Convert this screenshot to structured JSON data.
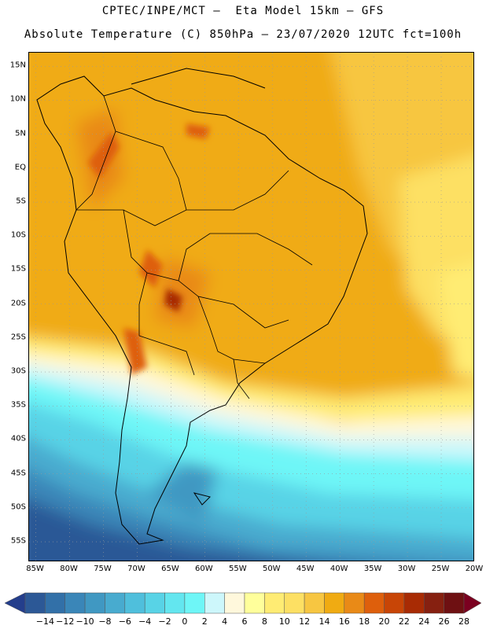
{
  "header": {
    "line1": "CPTEC/INPE/MCT –  Eta Model 15km – GFS",
    "line2": "Absolute Temperature (C) 850hPa – 23/07/2020 12UTC fct=100h"
  },
  "map": {
    "lat_labels": [
      "15N",
      "10N",
      "5N",
      "EQ",
      "5S",
      "10S",
      "15S",
      "20S",
      "25S",
      "30S",
      "35S",
      "40S",
      "45S",
      "50S",
      "55S"
    ],
    "lon_labels": [
      "85W",
      "80W",
      "75W",
      "70W",
      "65W",
      "60W",
      "55W",
      "50W",
      "45W",
      "40W",
      "35W",
      "30W",
      "25W",
      "20W"
    ],
    "lat_range": [
      17,
      -58
    ],
    "lon_range": [
      -86,
      -20
    ],
    "grid": "dotted"
  },
  "colorbar": {
    "labels": [
      "-14",
      "-12",
      "-10",
      "-8",
      "-6",
      "-4",
      "-2",
      "0",
      "2",
      "4",
      "6",
      "8",
      "10",
      "12",
      "14",
      "16",
      "18",
      "20",
      "22",
      "24",
      "26",
      "28"
    ],
    "colors": [
      "#243e8c",
      "#2c5896",
      "#3270a8",
      "#3a86b8",
      "#4098c2",
      "#48abcf",
      "#4fbfdc",
      "#58d3e6",
      "#63e6ef",
      "#6ef6f7",
      "#cdf7fb",
      "#fff8dc",
      "#ffff9b",
      "#ffec73",
      "#fde063",
      "#f7c641",
      "#f0ab12",
      "#e98a17",
      "#de5f0c",
      "#c84506",
      "#a82b04",
      "#862010",
      "#6e1012",
      "#7b0020"
    ]
  },
  "colors": {
    "land_border": "#000000",
    "grid": "#9a9a9a"
  }
}
